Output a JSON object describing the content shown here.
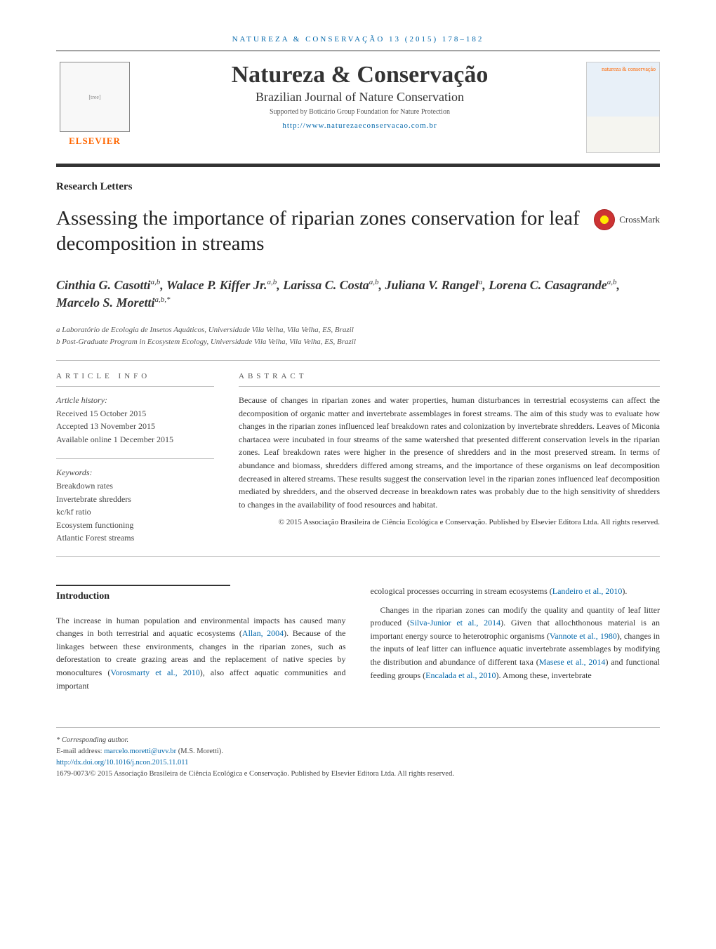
{
  "header": {
    "running_head": "NATUREZA & CONSERVAÇÃO 13 (2015) 178–182",
    "elsevier_label": "ELSEVIER",
    "journal_name": "Natureza & Conservação",
    "journal_subtitle": "Brazilian Journal of Nature Conservation",
    "support_text": "Supported by Boticário Group Foundation for Nature Protection",
    "journal_url": "http://www.naturezaeconservacao.com.br",
    "cover_text": "natureza & conservação"
  },
  "article": {
    "section_label": "Research Letters",
    "title": "Assessing the importance of riparian zones conservation for leaf decomposition in streams",
    "crossmark_label": "CrossMark",
    "authors_html": "Cinthia G. Casotti<sup>a,b</sup>, Walace P. Kiffer Jr.<sup>a,b</sup>, Larissa C. Costa<sup>a,b</sup>, Juliana V. Rangel<sup>a</sup>, Lorena C. Casagrande<sup>a,b</sup>, Marcelo S. Moretti<sup>a,b,*</sup>",
    "affiliations": [
      "a Laboratório de Ecologia de Insetos Aquáticos, Universidade Vila Velha, Vila Velha, ES, Brazil",
      "b Post-Graduate Program in Ecosystem Ecology, Universidade Vila Velha, Vila Velha, ES, Brazil"
    ]
  },
  "article_info": {
    "header": "ARTICLE INFO",
    "history_label": "Article history:",
    "received": "Received 15 October 2015",
    "accepted": "Accepted 13 November 2015",
    "available": "Available online 1 December 2015",
    "keywords_label": "Keywords:",
    "keywords": [
      "Breakdown rates",
      "Invertebrate shredders",
      "kc/kf ratio",
      "Ecosystem functioning",
      "Atlantic Forest streams"
    ]
  },
  "abstract": {
    "header": "ABSTRACT",
    "text": "Because of changes in riparian zones and water properties, human disturbances in terrestrial ecosystems can affect the decomposition of organic matter and invertebrate assemblages in forest streams. The aim of this study was to evaluate how changes in the riparian zones influenced leaf breakdown rates and colonization by invertebrate shredders. Leaves of Miconia chartacea were incubated in four streams of the same watershed that presented different conservation levels in the riparian zones. Leaf breakdown rates were higher in the presence of shredders and in the most preserved stream. In terms of abundance and biomass, shredders differed among streams, and the importance of these organisms on leaf decomposition decreased in altered streams. These results suggest the conservation level in the riparian zones influenced leaf decomposition mediated by shredders, and the observed decrease in breakdown rates was probably due to the high sensitivity of shredders to changes in the availability of food resources and habitat.",
    "copyright": "© 2015 Associação Brasileira de Ciência Ecológica e Conservação. Published by Elsevier Editora Ltda. All rights reserved."
  },
  "body": {
    "intro_heading": "Introduction",
    "col1_p1_html": "The increase in human population and environmental impacts has caused many changes in both terrestrial and aquatic ecosystems (<span class='citation-link'>Allan, 2004</span>). Because of the linkages between these environments, changes in the riparian zones, such as deforestation to create grazing areas and the replacement of native species by monocultures (<span class='citation-link'>Vorosmarty et al., 2010</span>), also affect aquatic communities and important",
    "col2_p1_html": "ecological processes occurring in stream ecosystems (<span class='citation-link'>Landeiro et al., 2010</span>).",
    "col2_p2_html": "Changes in the riparian zones can modify the quality and quantity of leaf litter produced (<span class='citation-link'>Silva-Junior et al., 2014</span>). Given that allochthonous material is an important energy source to heterotrophic organisms (<span class='citation-link'>Vannote et al., 1980</span>), changes in the inputs of leaf litter can influence aquatic invertebrate assemblages by modifying the distribution and abundance of different taxa (<span class='citation-link'>Masese et al., 2014</span>) and functional feeding groups (<span class='citation-link'>Encalada et al., 2010</span>). Among these, invertebrate"
  },
  "footer": {
    "corresponding_label": "* Corresponding author.",
    "email_label": "E-mail address:",
    "email": "marcelo.moretti@uvv.br",
    "email_name": "(M.S. Moretti).",
    "doi": "http://dx.doi.org/10.1016/j.ncon.2015.11.011",
    "issn_line": "1679-0073/© 2015 Associação Brasileira de Ciência Ecológica e Conservação. Published by Elsevier Editora Ltda. All rights reserved."
  },
  "colors": {
    "link": "#0066aa",
    "elsevier_orange": "#ff6600",
    "text": "#3a3a3a",
    "divider": "#333333"
  }
}
